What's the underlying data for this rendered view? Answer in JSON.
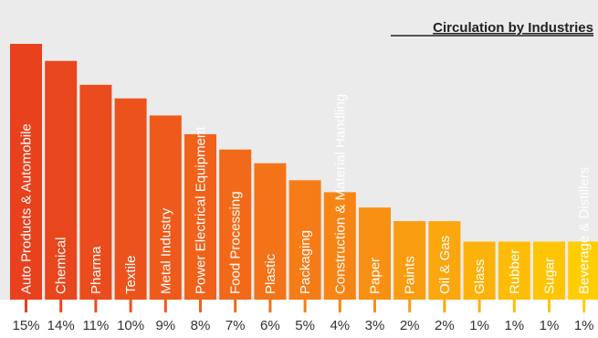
{
  "chart_data": {
    "type": "bar",
    "title": "Circulation by Industries",
    "categories": [
      "Auto Products & Automobile",
      "Chemical",
      "Pharma",
      "Textile",
      "Metal Industry",
      "Power Electrical Equipment",
      "Food Processing",
      "Plastic",
      "Packaging",
      "Construction & Material Handling",
      "Paper",
      "Paints",
      "Oil & Gas",
      "Glass",
      "Rubber",
      "Sugar",
      "Beverage & Distillers"
    ],
    "values": [
      15,
      14,
      11,
      10,
      9,
      8,
      7,
      6,
      5,
      4,
      3,
      2,
      2,
      1,
      1,
      1,
      1
    ],
    "value_labels": [
      "15%",
      "14%",
      "11%",
      "10%",
      "9%",
      "8%",
      "7%",
      "6%",
      "5%",
      "4%",
      "3%",
      "2%",
      "2%",
      "1%",
      "1%",
      "1%",
      "1%"
    ],
    "bar_heights_relative": [
      15.0,
      14.0,
      12.6,
      11.8,
      10.8,
      9.7,
      8.8,
      8.0,
      7.0,
      6.3,
      5.4,
      4.6,
      4.6,
      3.4,
      3.4,
      3.4,
      3.4
    ],
    "colors": [
      "#e8411d",
      "#e8461d",
      "#ea4c1d",
      "#ec531c",
      "#ee5a1b",
      "#f0611a",
      "#f26a19",
      "#f47318",
      "#f67c17",
      "#f78515",
      "#f89013",
      "#fa9c10",
      "#fba70d",
      "#fcb20a",
      "#fdbc07",
      "#fec505",
      "#ffcd03"
    ],
    "background": "#ebebeb",
    "grid": false,
    "legend": "none"
  }
}
